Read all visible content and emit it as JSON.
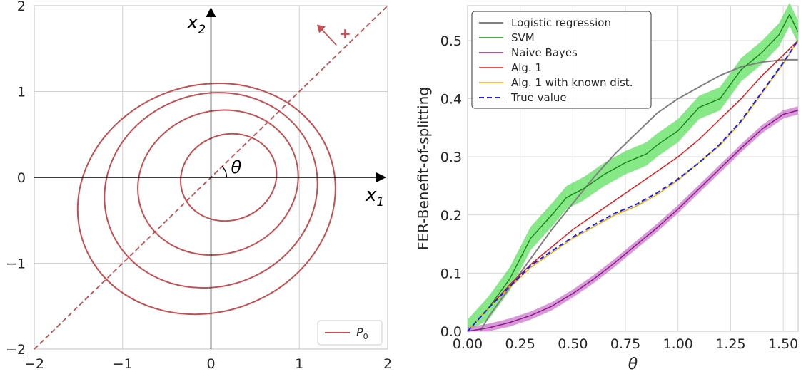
{
  "chart_data": [
    {
      "type": "contour",
      "xlim": [
        -2,
        2
      ],
      "ylim": [
        -2,
        2
      ],
      "xticks": [
        "−2",
        "−1",
        "0",
        "1",
        "2"
      ],
      "yticks": [
        "−2",
        "−1",
        "0",
        "1",
        "2"
      ],
      "x_axis_label": "x",
      "x_axis_subscript": "1",
      "y_axis_label": "x",
      "y_axis_subscript": "2",
      "angle_label": "θ",
      "plus_label": "+",
      "line_color": "#c44e52",
      "grid": true,
      "legend": {
        "label": "P",
        "subscript": "0",
        "position": "bottom-right"
      },
      "contours": [
        {
          "center": [
            0.2,
            0.0
          ],
          "rx": 0.55,
          "ry": 0.5,
          "tilt_deg": 20
        },
        {
          "center": [
            0.08,
            -0.06
          ],
          "rx": 0.92,
          "ry": 0.83,
          "tilt_deg": 20
        },
        {
          "center": [
            0.0,
            -0.15
          ],
          "rx": 1.22,
          "ry": 1.12,
          "tilt_deg": 20
        },
        {
          "center": [
            -0.05,
            -0.25
          ],
          "rx": 1.48,
          "ry": 1.32,
          "tilt_deg": 20
        }
      ],
      "dashed_line": {
        "slope_deg": 45
      }
    },
    {
      "type": "line",
      "xlabel": "θ",
      "ylabel": "FER-Benefit-of-splitting",
      "xlim": [
        0,
        1.5708
      ],
      "ylim": [
        0,
        0.56
      ],
      "xticks": [
        "0.00",
        "0.25",
        "0.50",
        "0.75",
        "1.00",
        "1.25",
        "1.50"
      ],
      "xtick_values": [
        0,
        0.25,
        0.5,
        0.75,
        1.0,
        1.25,
        1.5
      ],
      "yticks": [
        "0.0",
        "0.1",
        "0.2",
        "0.3",
        "0.4",
        "0.5"
      ],
      "ytick_values": [
        0,
        0.1,
        0.2,
        0.3,
        0.4,
        0.5
      ],
      "grid": true,
      "legend_position": "top-left",
      "series": [
        {
          "name": "Logistic regression",
          "color": "#808080",
          "dash": false,
          "width": 2,
          "x": [
            0.06,
            0.1,
            0.2,
            0.3,
            0.4,
            0.5,
            0.6,
            0.7,
            0.8,
            0.9,
            1.0,
            1.1,
            1.2,
            1.3,
            1.4,
            1.5,
            1.57
          ],
          "y": [
            0.0,
            0.025,
            0.075,
            0.125,
            0.175,
            0.22,
            0.265,
            0.305,
            0.34,
            0.375,
            0.4,
            0.42,
            0.44,
            0.455,
            0.463,
            0.467,
            0.467
          ]
        },
        {
          "name": "SVM",
          "color": "#1a8a1a",
          "dash": false,
          "width": 1.5,
          "x": [
            0.0,
            0.1,
            0.2,
            0.3,
            0.4,
            0.47,
            0.55,
            0.65,
            0.75,
            0.85,
            0.9,
            1.0,
            1.1,
            1.2,
            1.3,
            1.4,
            1.48,
            1.53,
            1.57
          ],
          "y": [
            0.0,
            0.04,
            0.09,
            0.16,
            0.2,
            0.23,
            0.245,
            0.27,
            0.29,
            0.305,
            0.32,
            0.345,
            0.385,
            0.4,
            0.45,
            0.48,
            0.51,
            0.545,
            0.515
          ],
          "band": 0.02,
          "band_color": "#5fe05f"
        },
        {
          "name": "Naive Bayes",
          "color": "#8b1a8b",
          "dash": false,
          "width": 1.5,
          "x": [
            0.0,
            0.1,
            0.2,
            0.3,
            0.4,
            0.5,
            0.6,
            0.7,
            0.8,
            0.9,
            1.0,
            1.1,
            1.2,
            1.3,
            1.4,
            1.5,
            1.57
          ],
          "y": [
            0.0,
            0.006,
            0.015,
            0.027,
            0.043,
            0.065,
            0.09,
            0.118,
            0.148,
            0.178,
            0.21,
            0.245,
            0.28,
            0.315,
            0.348,
            0.373,
            0.38
          ],
          "band": 0.007,
          "band_color": "#cc77cc"
        },
        {
          "name": "Alg. 1",
          "color": "#e41a1c",
          "dash": false,
          "width": 1.5,
          "x": [
            0.0,
            0.1,
            0.2,
            0.3,
            0.4,
            0.5,
            0.6,
            0.7,
            0.8,
            0.9,
            1.0,
            1.1,
            1.2,
            1.3,
            1.4,
            1.5,
            1.57
          ],
          "y": [
            0.0,
            0.04,
            0.08,
            0.115,
            0.145,
            0.175,
            0.2,
            0.225,
            0.25,
            0.275,
            0.3,
            0.33,
            0.365,
            0.4,
            0.44,
            0.475,
            0.5
          ]
        },
        {
          "name": "Alg. 1 with known dist.",
          "color": "#f0a800",
          "dash": false,
          "width": 1.5,
          "x": [
            0.0,
            0.1,
            0.2,
            0.3,
            0.4,
            0.5,
            0.6,
            0.7,
            0.8,
            0.9,
            1.0,
            1.1,
            1.2,
            1.3,
            1.4,
            1.5,
            1.57
          ],
          "y": [
            0.0,
            0.04,
            0.075,
            0.11,
            0.135,
            0.16,
            0.18,
            0.2,
            0.215,
            0.235,
            0.26,
            0.29,
            0.32,
            0.36,
            0.41,
            0.46,
            0.5
          ]
        },
        {
          "name": "True value",
          "color": "#1f1fe6",
          "dash": true,
          "width": 2,
          "x": [
            0.0,
            0.1,
            0.2,
            0.3,
            0.4,
            0.5,
            0.6,
            0.7,
            0.8,
            0.9,
            1.0,
            1.1,
            1.2,
            1.3,
            1.4,
            1.5,
            1.57
          ],
          "y": [
            0.0,
            0.04,
            0.077,
            0.113,
            0.138,
            0.162,
            0.183,
            0.203,
            0.218,
            0.238,
            0.262,
            0.29,
            0.322,
            0.362,
            0.412,
            0.462,
            0.5
          ]
        }
      ]
    }
  ]
}
